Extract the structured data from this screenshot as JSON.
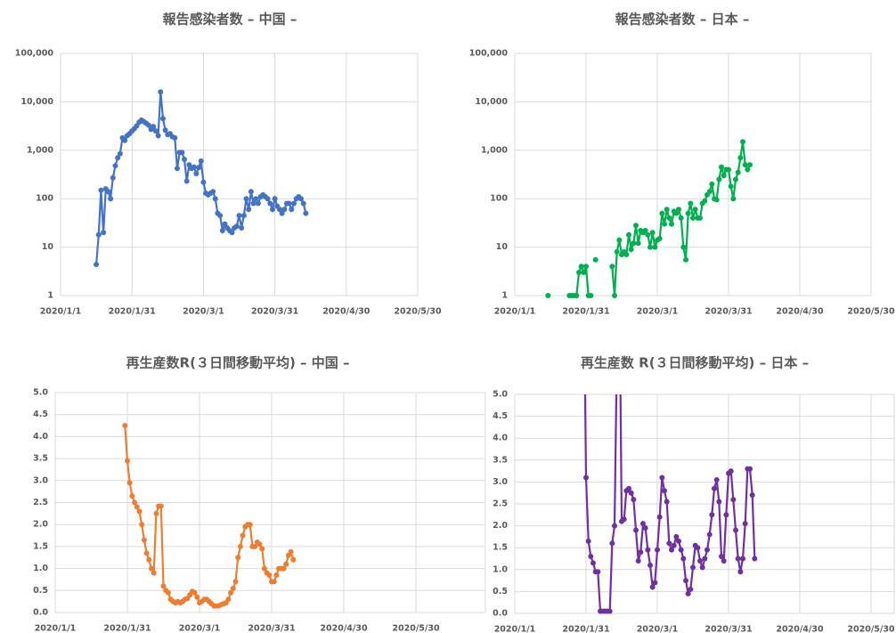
{
  "chart_data": [
    {
      "type": "line",
      "title": "報告感染者数 – 中国 –",
      "log": true,
      "grid": true,
      "color": "#4472c4",
      "xlim": [
        "2020/1/1",
        "2020/5/30"
      ],
      "xticks": [
        "2020/1/1",
        "2020/1/31",
        "2020/3/1",
        "2020/3/31",
        "2020/4/30",
        "2020/5/30"
      ],
      "ylim": [
        1,
        100000
      ],
      "yticks": [
        1,
        10,
        100,
        {
          "value": 1000,
          "label": "1,000"
        },
        {
          "value": 10000,
          "label": "10,000"
        },
        {
          "value": 100000,
          "label": "100,000"
        }
      ],
      "x": [
        "2020/1/16",
        "2020/1/17",
        "2020/1/18",
        "2020/1/19",
        "2020/1/20",
        "2020/1/21",
        "2020/1/22",
        "2020/1/23",
        "2020/1/24",
        "2020/1/25",
        "2020/1/26",
        "2020/1/27",
        "2020/1/28",
        "2020/1/29",
        "2020/1/30",
        "2020/1/31",
        "2020/2/1",
        "2020/2/2",
        "2020/2/3",
        "2020/2/4",
        "2020/2/5",
        "2020/2/6",
        "2020/2/7",
        "2020/2/8",
        "2020/2/9",
        "2020/2/10",
        "2020/2/11",
        "2020/2/12",
        "2020/2/13",
        "2020/2/14",
        "2020/2/15",
        "2020/2/16",
        "2020/2/17",
        "2020/2/18",
        "2020/2/19",
        "2020/2/20",
        "2020/2/21",
        "2020/2/22",
        "2020/2/23",
        "2020/2/24",
        "2020/2/25",
        "2020/2/26",
        "2020/2/27",
        "2020/2/28",
        "2020/2/29",
        "2020/3/1",
        "2020/3/2",
        "2020/3/3",
        "2020/3/4",
        "2020/3/5",
        "2020/3/6",
        "2020/3/7",
        "2020/3/8",
        "2020/3/9",
        "2020/3/10",
        "2020/3/11",
        "2020/3/12",
        "2020/3/13",
        "2020/3/14",
        "2020/3/15",
        "2020/3/16",
        "2020/3/17",
        "2020/3/18",
        "2020/3/19",
        "2020/3/20",
        "2020/3/21",
        "2020/3/22",
        "2020/3/23",
        "2020/3/24",
        "2020/3/25",
        "2020/3/26",
        "2020/3/27",
        "2020/3/28",
        "2020/3/29",
        "2020/3/30",
        "2020/3/31",
        "2020/4/1",
        "2020/4/2",
        "2020/4/3",
        "2020/4/4",
        "2020/4/5",
        "2020/4/6",
        "2020/4/7",
        "2020/4/8",
        "2020/4/9",
        "2020/4/10",
        "2020/4/11",
        "2020/4/12",
        "2020/4/13"
      ],
      "values": [
        4.4,
        18,
        150,
        20,
        160,
        140,
        100,
        270,
        480,
        700,
        850,
        1800,
        1600,
        2000,
        2200,
        2500,
        2800,
        3200,
        3800,
        4200,
        3900,
        3600,
        3300,
        2700,
        3100,
        2500,
        2000,
        16000,
        4500,
        2600,
        2100,
        2200,
        1900,
        1800,
        420,
        900,
        900,
        650,
        230,
        500,
        420,
        450,
        330,
        440,
        600,
        220,
        130,
        120,
        130,
        140,
        100,
        50,
        45,
        22,
        30,
        25,
        22,
        20,
        25,
        27,
        45,
        25,
        45,
        100,
        60,
        140,
        80,
        100,
        80,
        110,
        120,
        110,
        100,
        80,
        60,
        100,
        70,
        60,
        50,
        60,
        80,
        80,
        60,
        80,
        100,
        110,
        100,
        80,
        50
      ]
    },
    {
      "type": "line",
      "title": "報告感染者数 – 日本 –",
      "log": true,
      "grid": true,
      "color": "#00b050",
      "xlim": [
        "2020/1/1",
        "2020/5/30"
      ],
      "xticks": [
        "2020/1/1",
        "2020/1/31",
        "2020/3/1",
        "2020/3/31",
        "2020/4/30",
        "2020/5/30"
      ],
      "ylim": [
        1,
        100000
      ],
      "yticks": [
        1,
        10,
        100,
        {
          "value": 1000,
          "label": "1,000"
        },
        {
          "value": 10000,
          "label": "10,000"
        },
        {
          "value": 100000,
          "label": "100,000"
        }
      ],
      "x": [
        "2020/1/15",
        "2020/1/16",
        "2020/1/24",
        "2020/1/25",
        "2020/1/26",
        "2020/1/27",
        "2020/1/28",
        "2020/1/29",
        "2020/1/30",
        "2020/1/31",
        "2020/2/1",
        "2020/2/2",
        "2020/2/3",
        "2020/2/4",
        "2020/2/5",
        "2020/2/11",
        "2020/2/12",
        "2020/2/13",
        "2020/2/14",
        "2020/2/15",
        "2020/2/16",
        "2020/2/17",
        "2020/2/18",
        "2020/2/19",
        "2020/2/20",
        "2020/2/21",
        "2020/2/22",
        "2020/2/23",
        "2020/2/24",
        "2020/2/25",
        "2020/2/26",
        "2020/2/27",
        "2020/2/28",
        "2020/2/29",
        "2020/3/1",
        "2020/3/2",
        "2020/3/3",
        "2020/3/4",
        "2020/3/5",
        "2020/3/6",
        "2020/3/7",
        "2020/3/8",
        "2020/3/9",
        "2020/3/10",
        "2020/3/11",
        "2020/3/12",
        "2020/3/13",
        "2020/3/14",
        "2020/3/15",
        "2020/3/16",
        "2020/3/17",
        "2020/3/18",
        "2020/3/19",
        "2020/3/20",
        "2020/3/21",
        "2020/3/22",
        "2020/3/23",
        "2020/3/24",
        "2020/3/25",
        "2020/3/26",
        "2020/3/27",
        "2020/3/28",
        "2020/3/29",
        "2020/3/30",
        "2020/3/31",
        "2020/4/1",
        "2020/4/2",
        "2020/4/3",
        "2020/4/4",
        "2020/4/5",
        "2020/4/6",
        "2020/4/7",
        "2020/4/8",
        "2020/4/9"
      ],
      "values": [
        1,
        null,
        1,
        1,
        1,
        1,
        3,
        4,
        3,
        4,
        1,
        1,
        null,
        5.5,
        null,
        4,
        1,
        8,
        14,
        7,
        8,
        7,
        18,
        9,
        12,
        28,
        12,
        22,
        20,
        22,
        18,
        10,
        20,
        10,
        14,
        15,
        50,
        30,
        60,
        40,
        30,
        55,
        50,
        60,
        40,
        10,
        5.5,
        50,
        80,
        40,
        60,
        40,
        40,
        80,
        90,
        120,
        140,
        200,
        100,
        95,
        250,
        450,
        300,
        400,
        400,
        180,
        100,
        250,
        350,
        700,
        1500,
        500,
        400,
        500
      ]
    },
    {
      "type": "line",
      "title": "再生産数R(３日間移動平均) – 中国 –",
      "log": false,
      "grid": true,
      "color": "#ed7d31",
      "xlim": [
        "2020/1/1",
        "2020/5/30"
      ],
      "xticks": [
        "2020/1/1",
        "2020/1/31",
        "2020/3/1",
        "2020/3/31",
        "2020/4/30",
        "2020/5/30"
      ],
      "ylim": [
        0,
        5
      ],
      "yticks": [
        {
          "value": 0,
          "label": "0.0"
        },
        0.5,
        {
          "value": 1,
          "label": "1.0"
        },
        1.5,
        {
          "value": 2,
          "label": "2.0"
        },
        2.5,
        {
          "value": 3,
          "label": "3.0"
        },
        3.5,
        {
          "value": 4,
          "label": "4.0"
        },
        4.5,
        {
          "value": 5,
          "label": "5.0"
        }
      ],
      "x": [
        "2020/1/30",
        "2020/1/31",
        "2020/2/1",
        "2020/2/2",
        "2020/2/3",
        "2020/2/4",
        "2020/2/5",
        "2020/2/6",
        "2020/2/7",
        "2020/2/8",
        "2020/2/9",
        "2020/2/10",
        "2020/2/11",
        "2020/2/12",
        "2020/2/13",
        "2020/2/14",
        "2020/2/15",
        "2020/2/16",
        "2020/2/17",
        "2020/2/18",
        "2020/2/19",
        "2020/2/20",
        "2020/2/21",
        "2020/2/22",
        "2020/2/23",
        "2020/2/24",
        "2020/2/25",
        "2020/2/26",
        "2020/2/27",
        "2020/2/28",
        "2020/2/29",
        "2020/3/1",
        "2020/3/2",
        "2020/3/3",
        "2020/3/4",
        "2020/3/5",
        "2020/3/6",
        "2020/3/7",
        "2020/3/8",
        "2020/3/9",
        "2020/3/10",
        "2020/3/11",
        "2020/3/12",
        "2020/3/13",
        "2020/3/14",
        "2020/3/15",
        "2020/3/16",
        "2020/3/17",
        "2020/3/18",
        "2020/3/19",
        "2020/3/20",
        "2020/3/21",
        "2020/3/22",
        "2020/3/23",
        "2020/3/24",
        "2020/3/25",
        "2020/3/26",
        "2020/3/27",
        "2020/3/28",
        "2020/3/29",
        "2020/3/30",
        "2020/3/31",
        "2020/4/1",
        "2020/4/2",
        "2020/4/3",
        "2020/4/4",
        "2020/4/5",
        "2020/4/6",
        "2020/4/7",
        "2020/4/8",
        "2020/4/9"
      ],
      "values": [
        4.25,
        3.45,
        2.95,
        2.65,
        2.5,
        2.4,
        2.3,
        2.0,
        1.65,
        1.35,
        1.2,
        1.0,
        0.9,
        2.25,
        2.42,
        2.42,
        0.6,
        0.5,
        0.45,
        0.3,
        0.25,
        0.22,
        0.25,
        0.22,
        0.25,
        0.3,
        0.32,
        0.4,
        0.48,
        0.45,
        0.35,
        0.22,
        0.25,
        0.3,
        0.3,
        0.25,
        0.2,
        0.15,
        0.15,
        0.15,
        0.18,
        0.2,
        0.22,
        0.3,
        0.45,
        0.55,
        0.7,
        1.25,
        1.5,
        1.75,
        1.95,
        2.0,
        2.0,
        1.5,
        1.5,
        1.6,
        1.55,
        1.45,
        1.0,
        0.9,
        0.85,
        0.7,
        0.7,
        0.85,
        1.0,
        1.0,
        1.0,
        1.1,
        1.3,
        1.38,
        1.2
      ]
    },
    {
      "type": "line",
      "title": "再生産数 R(３日間移動平均) – 日本 –",
      "log": false,
      "grid": true,
      "color": "#7030a0",
      "xlim": [
        "2020/1/1",
        "2020/5/30"
      ],
      "xticks": [
        "2020/1/1",
        "2020/1/31",
        "2020/3/1",
        "2020/3/31",
        "2020/4/30",
        "2020/5/30"
      ],
      "ylim": [
        0,
        5
      ],
      "yticks": [
        {
          "value": 0,
          "label": "0.0"
        },
        0.5,
        {
          "value": 1,
          "label": "1.0"
        },
        1.5,
        {
          "value": 2,
          "label": "2.0"
        },
        2.5,
        {
          "value": 3,
          "label": "3.0"
        },
        3.5,
        {
          "value": 4,
          "label": "4.0"
        },
        4.5,
        {
          "value": 5,
          "label": "5.0"
        }
      ],
      "x": [
        "2020/1/30",
        "2020/1/31",
        "2020/2/1",
        "2020/2/2",
        "2020/2/3",
        "2020/2/4",
        "2020/2/5",
        "2020/2/6",
        "2020/2/7",
        "2020/2/8",
        "2020/2/9",
        "2020/2/10",
        "2020/2/11",
        "2020/2/12",
        "2020/2/13",
        "2020/2/14",
        "2020/2/15",
        "2020/2/16",
        "2020/2/17",
        "2020/2/18",
        "2020/2/19",
        "2020/2/20",
        "2020/2/21",
        "2020/2/22",
        "2020/2/23",
        "2020/2/24",
        "2020/2/25",
        "2020/2/26",
        "2020/2/27",
        "2020/2/28",
        "2020/2/29",
        "2020/3/1",
        "2020/3/2",
        "2020/3/3",
        "2020/3/4",
        "2020/3/5",
        "2020/3/6",
        "2020/3/7",
        "2020/3/8",
        "2020/3/9",
        "2020/3/10",
        "2020/3/11",
        "2020/3/12",
        "2020/3/13",
        "2020/3/14",
        "2020/3/15",
        "2020/3/16",
        "2020/3/17",
        "2020/3/18",
        "2020/3/19",
        "2020/3/20",
        "2020/3/21",
        "2020/3/22",
        "2020/3/23",
        "2020/3/24",
        "2020/3/25",
        "2020/3/26",
        "2020/3/27",
        "2020/3/28",
        "2020/3/29",
        "2020/3/30",
        "2020/3/31",
        "2020/4/1",
        "2020/4/2",
        "2020/4/3",
        "2020/4/4",
        "2020/4/5",
        "2020/4/6",
        "2020/4/7",
        "2020/4/8",
        "2020/4/9",
        "2020/4/10",
        "2020/4/11"
      ],
      "values": [
        8,
        3.1,
        1.65,
        1.3,
        1.15,
        0.95,
        0.95,
        0.05,
        0.05,
        0.05,
        0.05,
        0.05,
        1.6,
        2.0,
        6,
        8,
        2.1,
        2.15,
        2.8,
        2.85,
        2.75,
        2.6,
        1.9,
        1.2,
        1.4,
        2.05,
        1.95,
        1.45,
        1.1,
        0.6,
        0.7,
        1.45,
        2.2,
        3.1,
        2.8,
        2.55,
        1.6,
        1.45,
        1.55,
        1.75,
        1.65,
        1.45,
        1.25,
        0.75,
        0.45,
        0.55,
        1.05,
        1.55,
        1.5,
        1.2,
        1.05,
        1.25,
        1.45,
        1.8,
        2.25,
        2.85,
        3.05,
        2.55,
        1.3,
        1.2,
        2.25,
        3.2,
        3.25,
        2.6,
        1.9,
        1.25,
        0.95,
        1.25,
        2.05,
        3.3,
        3.3,
        2.7,
        1.25
      ]
    }
  ]
}
